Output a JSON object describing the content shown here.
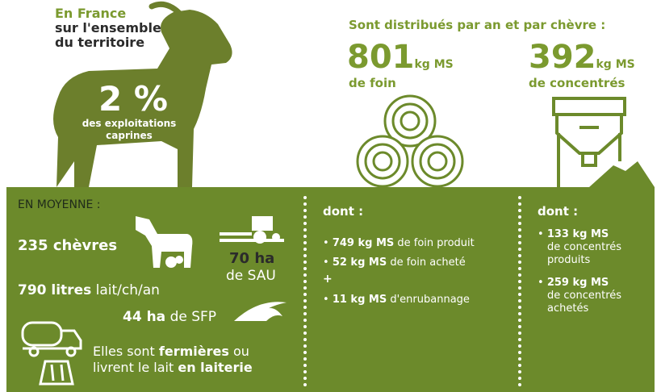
{
  "header": {
    "region": "En France",
    "scope_line1": "sur l'ensemble",
    "scope_line2": "du territoire",
    "share": "2 %",
    "share_line1": "des exploitations",
    "share_line2": "caprines",
    "distributed": "Sont distribués par an et par chèvre :",
    "hay": {
      "amount": "801",
      "unit": "kg MS",
      "label": "de foin"
    },
    "concentrates": {
      "amount": "392",
      "unit": "kg MS",
      "label": "de concentrés"
    }
  },
  "average": {
    "title": "EN MOYENNE :",
    "goats": "235 chèvres",
    "sau_value": "70 ha",
    "sau_label": "de SAU",
    "milk_value": "790 litres",
    "milk_label": "lait/ch/an",
    "sfp_value": "44 ha",
    "sfp_label": "de SFP",
    "line1_a": "Elles sont ",
    "line1_b": "fermières",
    "line1_c": " ou",
    "line2_a": "livrent le lait ",
    "line2_b": "en laiterie"
  },
  "hay_detail": {
    "title": "dont :",
    "items": [
      {
        "amount": "749 kg MS",
        "text": " de foin produit"
      },
      {
        "amount": "52 kg MS",
        "text": " de foin acheté"
      },
      {
        "amount": "11 kg MS",
        "text": " d'enrubannage"
      }
    ],
    "plus": "+"
  },
  "concentrate_detail": {
    "title": "dont :",
    "items": [
      {
        "amount": "133 kg MS",
        "line1": "de concentrés",
        "line2": "produits"
      },
      {
        "amount": "259 kg MS",
        "line1": "de concentrés",
        "line2": "achetés"
      }
    ]
  }
}
